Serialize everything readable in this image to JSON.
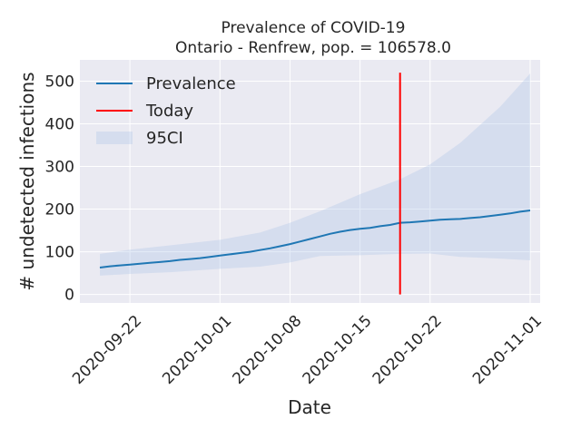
{
  "chart_data": {
    "type": "line",
    "title_line1": "Prevalence of COVID-19",
    "title_line2": "Ontario - Renfrew, pop. = 106578.0",
    "xlabel": "Date",
    "ylabel": "# undetected infections",
    "xlim": [
      "2020-09-17",
      "2020-11-02"
    ],
    "ylim": [
      -20,
      550
    ],
    "x_ticks": [
      "2020-09-22",
      "2020-10-01",
      "2020-10-08",
      "2020-10-15",
      "2020-10-22",
      "2020-11-01"
    ],
    "y_ticks": [
      0,
      100,
      200,
      300,
      400,
      500
    ],
    "grid": true,
    "legend_position": "upper-left",
    "legend": [
      {
        "label": "Prevalence",
        "kind": "line",
        "color": "#1f77b4"
      },
      {
        "label": "Today",
        "kind": "line",
        "color": "#ff0000"
      },
      {
        "label": "95CI",
        "kind": "band",
        "color": "#aec7e8"
      }
    ],
    "today": "2020-10-19",
    "series": [
      {
        "name": "Prevalence",
        "color": "#1f77b4",
        "points": [
          [
            "2020-09-19",
            63
          ],
          [
            "2020-09-20",
            66
          ],
          [
            "2020-09-21",
            68
          ],
          [
            "2020-09-22",
            70
          ],
          [
            "2020-09-23",
            72
          ],
          [
            "2020-09-24",
            74
          ],
          [
            "2020-09-25",
            76
          ],
          [
            "2020-09-26",
            78
          ],
          [
            "2020-09-27",
            81
          ],
          [
            "2020-09-28",
            83
          ],
          [
            "2020-09-29",
            85
          ],
          [
            "2020-09-30",
            88
          ],
          [
            "2020-10-01",
            91
          ],
          [
            "2020-10-02",
            94
          ],
          [
            "2020-10-03",
            97
          ],
          [
            "2020-10-04",
            100
          ],
          [
            "2020-10-05",
            104
          ],
          [
            "2020-10-06",
            108
          ],
          [
            "2020-10-07",
            113
          ],
          [
            "2020-10-08",
            118
          ],
          [
            "2020-10-09",
            124
          ],
          [
            "2020-10-10",
            130
          ],
          [
            "2020-10-11",
            136
          ],
          [
            "2020-10-12",
            142
          ],
          [
            "2020-10-13",
            147
          ],
          [
            "2020-10-14",
            151
          ],
          [
            "2020-10-15",
            154
          ],
          [
            "2020-10-16",
            156
          ],
          [
            "2020-10-17",
            160
          ],
          [
            "2020-10-18",
            163
          ],
          [
            "2020-10-19",
            168
          ],
          [
            "2020-10-20",
            169
          ],
          [
            "2020-10-21",
            171
          ],
          [
            "2020-10-22",
            173
          ],
          [
            "2020-10-23",
            175
          ],
          [
            "2020-10-24",
            176
          ],
          [
            "2020-10-25",
            177
          ],
          [
            "2020-10-26",
            179
          ],
          [
            "2020-10-27",
            181
          ],
          [
            "2020-10-28",
            184
          ],
          [
            "2020-10-29",
            187
          ],
          [
            "2020-10-30",
            190
          ],
          [
            "2020-10-31",
            194
          ],
          [
            "2020-11-01",
            197
          ]
        ]
      }
    ],
    "ci95": {
      "name": "95CI",
      "color": "#aec7e8",
      "lower": [
        [
          "2020-09-19",
          44
        ],
        [
          "2020-09-22",
          48
        ],
        [
          "2020-09-26",
          52
        ],
        [
          "2020-10-01",
          60
        ],
        [
          "2020-10-05",
          65
        ],
        [
          "2020-10-08",
          75
        ],
        [
          "2020-10-11",
          90
        ],
        [
          "2020-10-15",
          92
        ],
        [
          "2020-10-19",
          95
        ],
        [
          "2020-10-22",
          96
        ],
        [
          "2020-10-25",
          88
        ],
        [
          "2020-10-29",
          84
        ],
        [
          "2020-11-01",
          80
        ]
      ],
      "upper": [
        [
          "2020-09-19",
          95
        ],
        [
          "2020-09-22",
          105
        ],
        [
          "2020-09-26",
          115
        ],
        [
          "2020-10-01",
          128
        ],
        [
          "2020-10-05",
          145
        ],
        [
          "2020-10-08",
          168
        ],
        [
          "2020-10-11",
          195
        ],
        [
          "2020-10-15",
          235
        ],
        [
          "2020-10-19",
          270
        ],
        [
          "2020-10-22",
          305
        ],
        [
          "2020-10-25",
          355
        ],
        [
          "2020-10-29",
          440
        ],
        [
          "2020-11-01",
          518
        ]
      ]
    }
  }
}
